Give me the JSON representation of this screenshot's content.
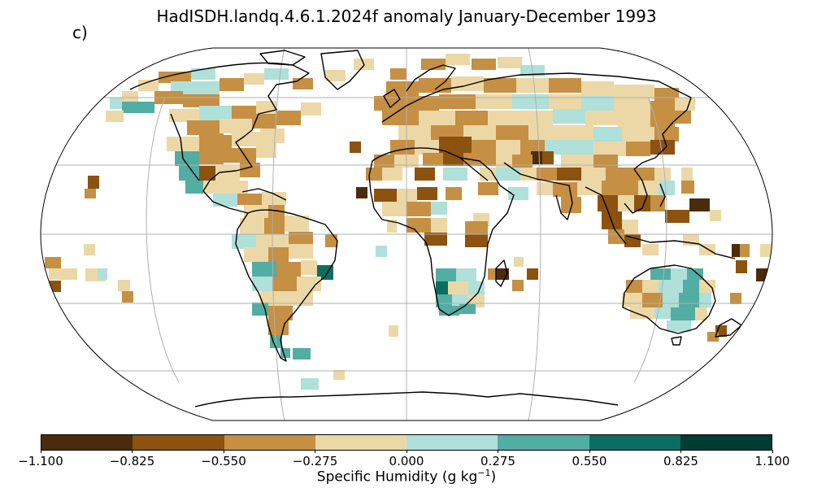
{
  "title": "HadISDH.landq.4.6.1.2024f anomaly January-December 1993",
  "panel_label": "c)",
  "colorbar": {
    "label_main": "Specific Humidity (g kg",
    "label_exp": "−1",
    "label_close": ")",
    "ticks": [
      "−1.100",
      "−0.825",
      "−0.550",
      "−0.275",
      "0.000",
      "0.275",
      "0.550",
      "0.825",
      "1.100"
    ],
    "colors": [
      "#4a2c0a",
      "#8c520f",
      "#c58f44",
      "#ecd8a6",
      "#afe0d9",
      "#52ada2",
      "#0d6d62",
      "#013b31"
    ]
  },
  "map": {
    "projection": "Robinson",
    "gridlines": "30° spacing",
    "ocean_color": "#ffffff",
    "missing_data_color": "#ffffff"
  }
}
